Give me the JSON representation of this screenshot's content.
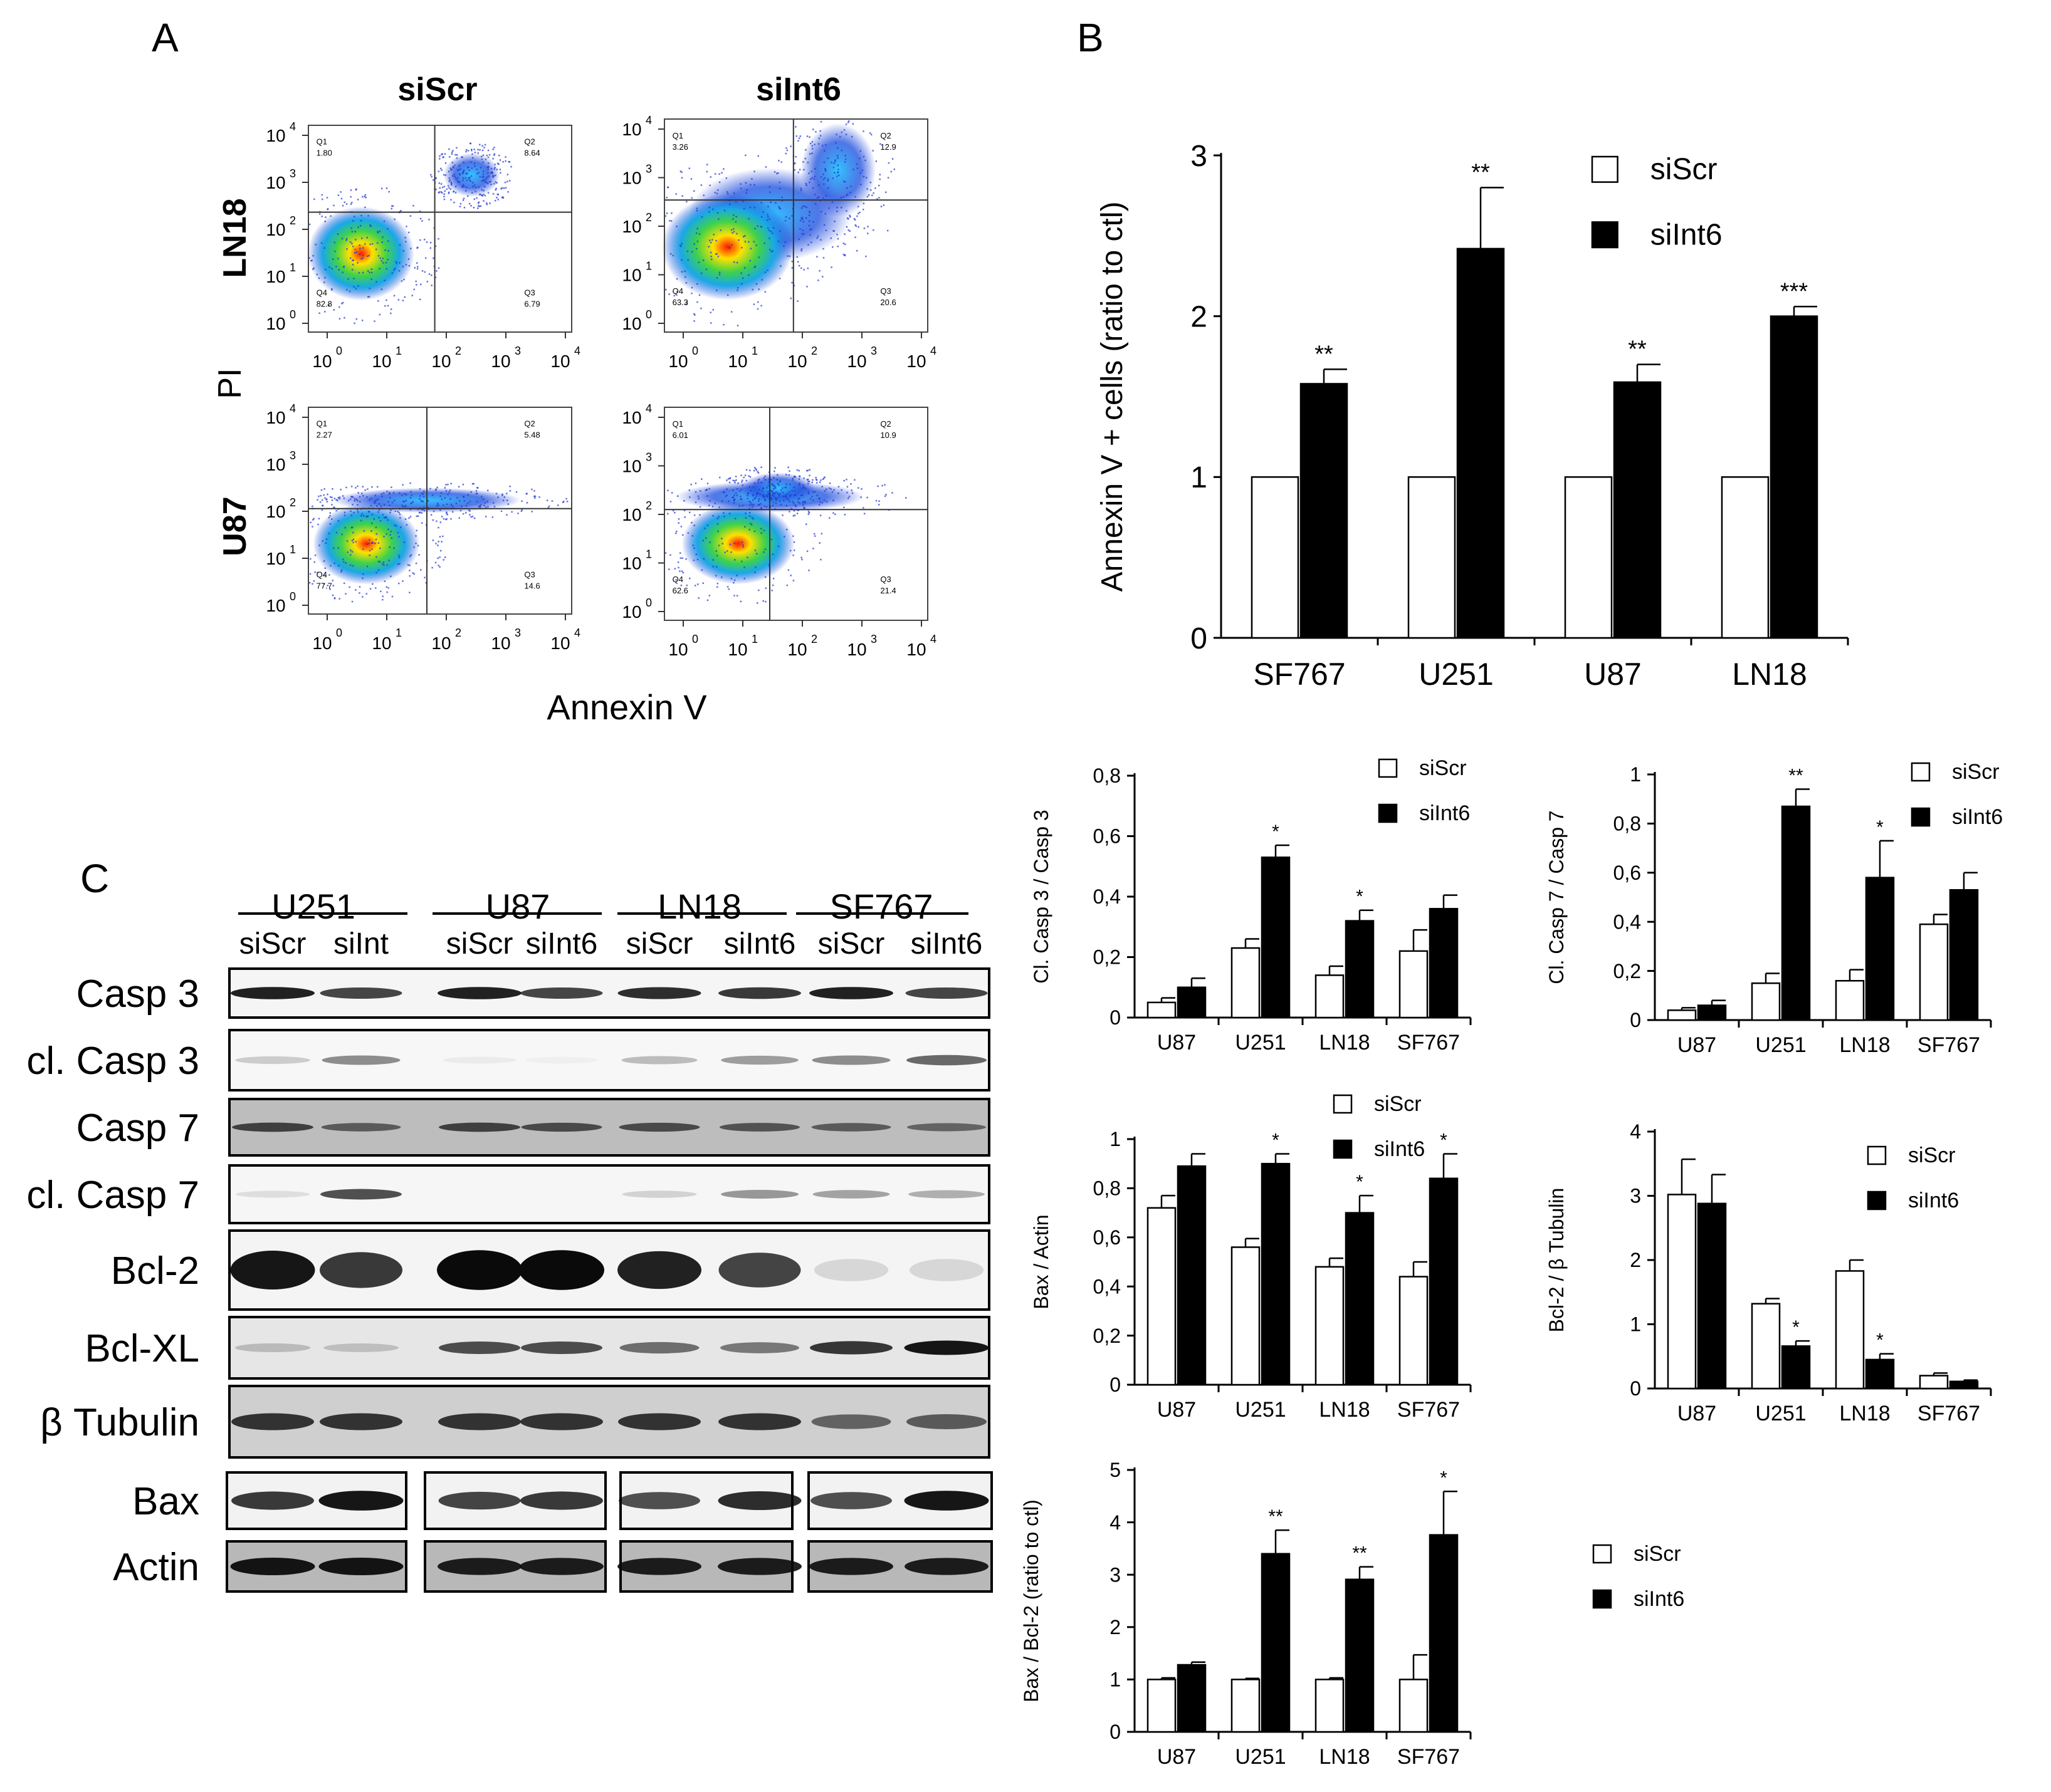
{
  "panels": {
    "A": {
      "letter": "A",
      "col_titles": [
        "siScr",
        "siInt6"
      ],
      "row_labels": [
        "LN18",
        "U87"
      ],
      "y_label": "PI",
      "x_label": "Annexin V",
      "tick_labels": [
        "10",
        "10",
        "10",
        "10",
        "10"
      ],
      "tick_exponents": [
        "0",
        "1",
        "2",
        "3",
        "4"
      ],
      "plots": [
        {
          "row": "LN18",
          "col": "siScr",
          "quadrants": {
            "Q1": "1.80",
            "Q2": "8.64",
            "Q3": "6.79",
            "Q4": "82.8"
          }
        },
        {
          "row": "LN18",
          "col": "siInt6",
          "quadrants": {
            "Q1": "3.26",
            "Q2": "12.9",
            "Q3": "20.6",
            "Q4": "63.3"
          }
        },
        {
          "row": "U87",
          "col": "siScr",
          "quadrants": {
            "Q1": "2.27",
            "Q2": "5.48",
            "Q3": "14.6",
            "Q4": "77.7"
          }
        },
        {
          "row": "U87",
          "col": "siInt6",
          "quadrants": {
            "Q1": "6.01",
            "Q2": "10.9",
            "Q3": "21.4",
            "Q4": "62.6"
          }
        }
      ],
      "quadrant_names": [
        "Q1",
        "Q2",
        "Q3",
        "Q4"
      ]
    },
    "C": {
      "letter": "C",
      "groups": [
        "U251",
        "U87",
        "LN18",
        "SF767"
      ],
      "lane_labels": [
        "siScr",
        "siInt",
        "siScr",
        "siInt6",
        "siScr",
        "siInt6",
        "siScr",
        "siInt6"
      ],
      "rows": [
        "Casp 3",
        "cl. Casp 3",
        "Casp 7",
        "cl. Casp 7",
        "Bcl-2",
        "Bcl-XL",
        "β Tubulin",
        "Bax",
        "Actin"
      ]
    }
  },
  "chart_data": [
    {
      "id": "B",
      "letter": "B",
      "type": "bar",
      "categories": [
        "SF767",
        "U251",
        "U87",
        "LN18"
      ],
      "ylabel": "Annexin V + cells (ratio to ctl)",
      "ylim": [
        0,
        3
      ],
      "yticks": [
        "0",
        "1",
        "2",
        "3"
      ],
      "legend": "top-right",
      "series": [
        {
          "name": "siScr",
          "values": [
            1,
            1,
            1,
            1
          ],
          "errors": [
            0,
            0,
            0,
            0
          ],
          "color": "#ffffff"
        },
        {
          "name": "siInt6",
          "values": [
            1.58,
            2.42,
            1.59,
            2.0
          ],
          "errors": [
            0.09,
            0.38,
            0.11,
            0.06
          ],
          "color": "#000000"
        }
      ],
      "significance": [
        "**",
        "**",
        "**",
        "***"
      ]
    },
    {
      "id": "casp3",
      "type": "bar",
      "categories": [
        "U87",
        "U251",
        "LN18",
        "SF767"
      ],
      "ylabel": "Cl. Casp 3 / Casp 3",
      "ylim": [
        0,
        0.8
      ],
      "yticks": [
        "0",
        "0,2",
        "0,4",
        "0,6",
        "0,8"
      ],
      "legend": "top-right",
      "series": [
        {
          "name": "siScr",
          "values": [
            0.05,
            0.23,
            0.14,
            0.22
          ],
          "errors": [
            0.015,
            0.03,
            0.03,
            0.07
          ],
          "color": "#ffffff"
        },
        {
          "name": "siInt6",
          "values": [
            0.1,
            0.53,
            0.32,
            0.36
          ],
          "errors": [
            0.03,
            0.04,
            0.035,
            0.045
          ],
          "color": "#000000"
        }
      ],
      "significance": [
        "",
        "*",
        "*",
        ""
      ]
    },
    {
      "id": "casp7",
      "type": "bar",
      "categories": [
        "U87",
        "U251",
        "LN18",
        "SF767"
      ],
      "ylabel": "Cl. Casp 7 / Casp 7",
      "ylim": [
        0,
        1
      ],
      "yticks": [
        "0",
        "0,2",
        "0,4",
        "0,6",
        "0,8",
        "1"
      ],
      "legend": "top-right",
      "series": [
        {
          "name": "siScr",
          "values": [
            0.04,
            0.15,
            0.16,
            0.39
          ],
          "errors": [
            0.01,
            0.04,
            0.045,
            0.04
          ],
          "color": "#ffffff"
        },
        {
          "name": "siInt6",
          "values": [
            0.06,
            0.87,
            0.58,
            0.53
          ],
          "errors": [
            0.02,
            0.07,
            0.15,
            0.07
          ],
          "color": "#000000"
        }
      ],
      "significance": [
        "",
        "**",
        "*",
        ""
      ]
    },
    {
      "id": "bax",
      "type": "bar",
      "categories": [
        "U87",
        "U251",
        "LN18",
        "SF767"
      ],
      "ylabel": "Bax / Actin",
      "ylim": [
        0,
        1
      ],
      "yticks": [
        "0",
        "0,2",
        "0,4",
        "0,6",
        "0,8",
        "1"
      ],
      "legend": "top-right",
      "series": [
        {
          "name": "siScr",
          "values": [
            0.72,
            0.56,
            0.48,
            0.44
          ],
          "errors": [
            0.05,
            0.035,
            0.035,
            0.06
          ],
          "color": "#ffffff"
        },
        {
          "name": "siInt6",
          "values": [
            0.89,
            0.9,
            0.7,
            0.84
          ],
          "errors": [
            0.05,
            0.04,
            0.07,
            0.1
          ],
          "color": "#000000"
        }
      ],
      "significance": [
        "",
        "*",
        "*",
        "*"
      ]
    },
    {
      "id": "bcl2",
      "type": "bar",
      "categories": [
        "U87",
        "U251",
        "LN18",
        "SF767"
      ],
      "ylabel": "Bcl-2 / β Tubulin",
      "ylim": [
        0,
        4
      ],
      "yticks": [
        "0",
        "1",
        "2",
        "3",
        "4"
      ],
      "legend": "top-right",
      "series": [
        {
          "name": "siScr",
          "values": [
            3.02,
            1.32,
            1.83,
            0.2
          ],
          "errors": [
            0.55,
            0.08,
            0.17,
            0.04
          ],
          "color": "#ffffff"
        },
        {
          "name": "siInt6",
          "values": [
            2.88,
            0.66,
            0.45,
            0.11
          ],
          "errors": [
            0.45,
            0.08,
            0.09,
            0.02
          ],
          "color": "#000000"
        }
      ],
      "significance": [
        "",
        "*",
        "*",
        ""
      ]
    },
    {
      "id": "baxbcl",
      "type": "bar",
      "categories": [
        "U87",
        "U251",
        "LN18",
        "SF767"
      ],
      "ylabel": "Bax / Bcl-2 (ratio to ctl)",
      "ylim": [
        0,
        5
      ],
      "yticks": [
        "0",
        "1",
        "2",
        "3",
        "4",
        "5"
      ],
      "legend": "top-right",
      "series": [
        {
          "name": "siScr",
          "values": [
            1.0,
            1.0,
            1.0,
            1.0
          ],
          "errors": [
            0.03,
            0.02,
            0.03,
            0.47
          ],
          "color": "#ffffff"
        },
        {
          "name": "siInt6",
          "values": [
            1.28,
            3.4,
            2.91,
            3.76
          ],
          "errors": [
            0.05,
            0.45,
            0.24,
            0.83
          ],
          "color": "#000000"
        }
      ],
      "significance": [
        "",
        "**",
        "**",
        "*"
      ]
    }
  ]
}
